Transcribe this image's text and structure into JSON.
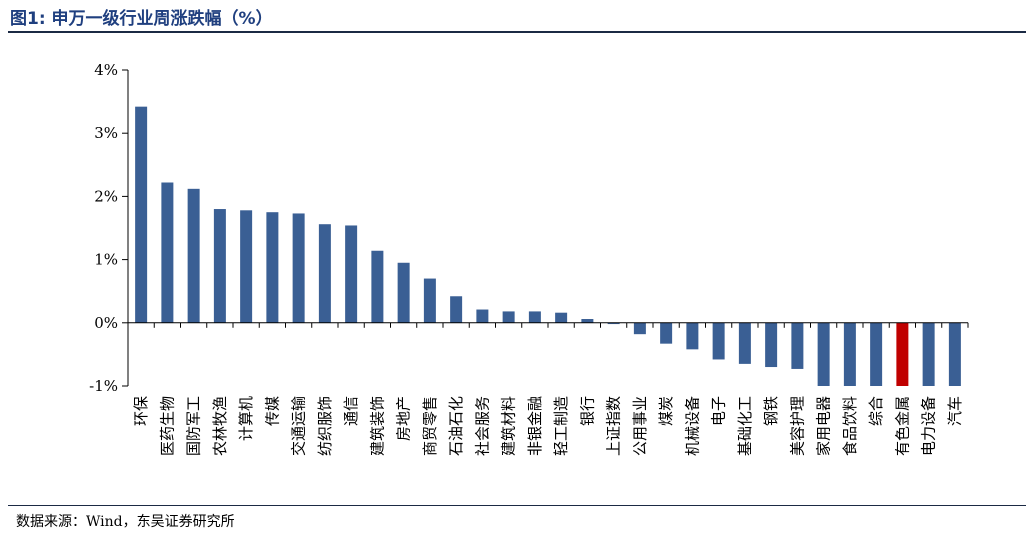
{
  "header": {
    "title": "图1:  申万一级行业周涨跌幅（%）"
  },
  "footer": {
    "source": "数据来源：Wind，东吴证券研究所"
  },
  "colors": {
    "bar": "#3a5f94",
    "highlight": "#c00000",
    "axis": "#000000"
  },
  "chart_data": {
    "type": "bar",
    "title": "",
    "xlabel": "",
    "ylabel": "",
    "ylim": [
      -1,
      4
    ],
    "yticks": [
      "4%",
      "3%",
      "2%",
      "1%",
      "0%",
      "-1%"
    ],
    "ytick_values": [
      4,
      3,
      2,
      1,
      0,
      -1
    ],
    "grid": false,
    "highlight_category": "有色金属",
    "categories": [
      "环保",
      "医药生物",
      "国防军工",
      "农林牧渔",
      "计算机",
      "传媒",
      "交通运输",
      "纺织服饰",
      "通信",
      "建筑装饰",
      "房地产",
      "商贸零售",
      "石油石化",
      "社会服务",
      "建筑材料",
      "非银金融",
      "轻工制造",
      "银行",
      "上证指数",
      "公用事业",
      "煤炭",
      "机械设备",
      "电子",
      "基础化工",
      "钢铁",
      "美容护理",
      "家用电器",
      "食品饮料",
      "综合",
      "有色金属",
      "电力设备",
      "汽车"
    ],
    "values": [
      3.42,
      2.22,
      2.12,
      1.8,
      1.78,
      1.75,
      1.73,
      1.56,
      1.54,
      1.14,
      0.95,
      0.7,
      0.42,
      0.21,
      0.18,
      0.18,
      0.16,
      0.06,
      -0.02,
      -0.18,
      -0.33,
      -0.42,
      -0.58,
      -0.65,
      -0.7,
      -0.73,
      -1.0,
      -1.0,
      -1.0,
      -1.0,
      -1.0,
      -1.0
    ]
  }
}
